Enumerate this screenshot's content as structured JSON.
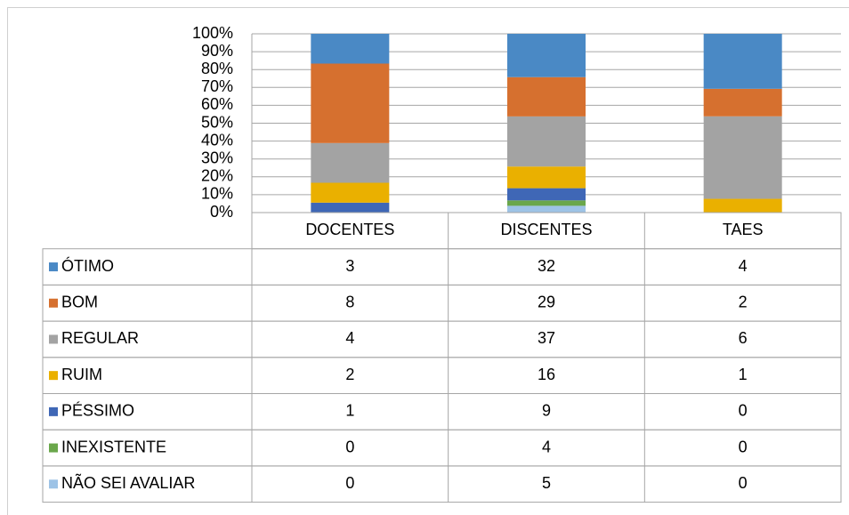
{
  "chart_data": {
    "type": "bar",
    "stacked": "percent",
    "categories": [
      "DOCENTES",
      "DISCENTES",
      "TAES"
    ],
    "series": [
      {
        "name": "ÓTIMO",
        "color": "#4a89c5",
        "values": [
          3,
          32,
          4
        ]
      },
      {
        "name": "BOM",
        "color": "#d6702f",
        "values": [
          8,
          29,
          2
        ]
      },
      {
        "name": "REGULAR",
        "color": "#a3a3a3",
        "values": [
          4,
          37,
          6
        ]
      },
      {
        "name": "RUIM",
        "color": "#eab000",
        "values": [
          2,
          16,
          1
        ]
      },
      {
        "name": "PÉSSIMO",
        "color": "#3f67b6",
        "values": [
          1,
          9,
          0
        ]
      },
      {
        "name": "INEXISTENTE",
        "color": "#6aa74b",
        "values": [
          0,
          4,
          0
        ]
      },
      {
        "name": "NÃO SEI AVALIAR",
        "color": "#9dc3e6",
        "values": [
          0,
          5,
          0
        ]
      }
    ],
    "ylim": [
      0,
      100
    ],
    "yticks": [
      {
        "value": 0,
        "label": "0%"
      },
      {
        "value": 10,
        "label": "10%"
      },
      {
        "value": 20,
        "label": "20%"
      },
      {
        "value": 30,
        "label": "30%"
      },
      {
        "value": 40,
        "label": "40%"
      },
      {
        "value": 50,
        "label": "50%"
      },
      {
        "value": 60,
        "label": "60%"
      },
      {
        "value": 70,
        "label": "70%"
      },
      {
        "value": 80,
        "label": "80%"
      },
      {
        "value": 90,
        "label": "90%"
      },
      {
        "value": 100,
        "label": "100%"
      }
    ],
    "grid": true
  }
}
